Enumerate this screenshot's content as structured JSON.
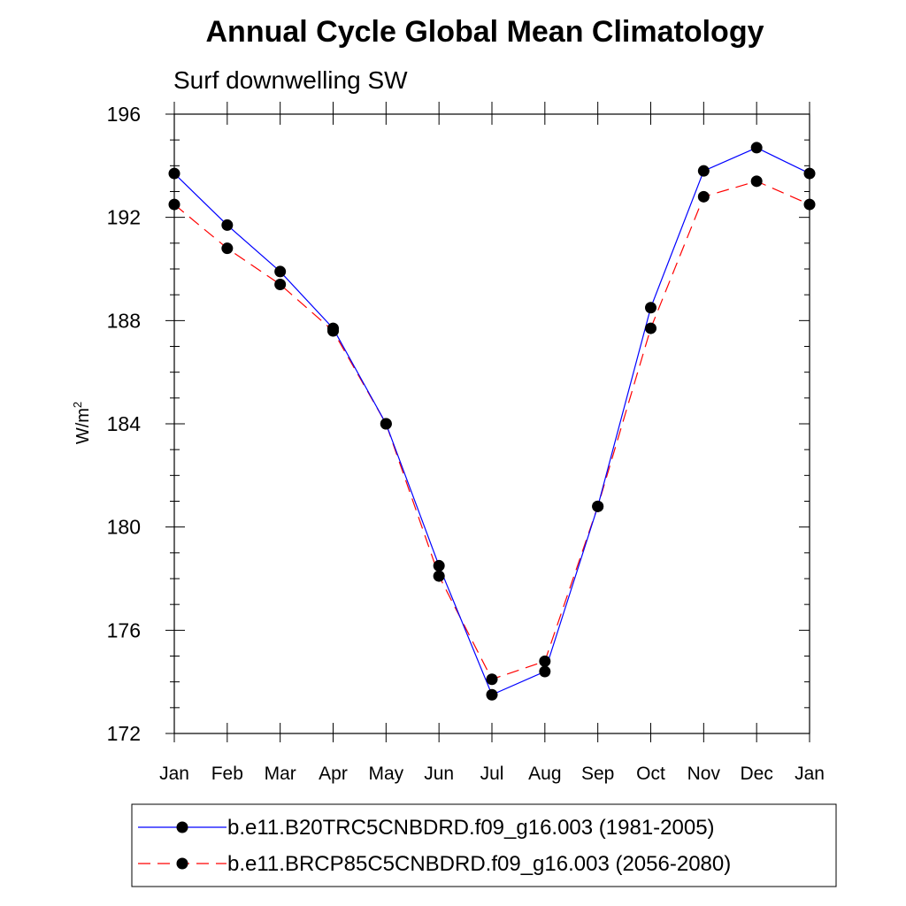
{
  "chart_data": {
    "type": "line",
    "title": "Annual Cycle Global Mean Climatology",
    "subtitle": "Surf downwelling SW",
    "ylabel": "W/m",
    "ylabel_sup": "2",
    "xlabel": "",
    "categories": [
      "Jan",
      "Feb",
      "Mar",
      "Apr",
      "May",
      "Jun",
      "Jul",
      "Aug",
      "Sep",
      "Oct",
      "Nov",
      "Dec",
      "Jan"
    ],
    "ylim": [
      172,
      196
    ],
    "yticks": [
      172,
      176,
      180,
      184,
      188,
      192,
      196
    ],
    "series": [
      {
        "name": "b.e11.B20TRC5CNBDRD.f09_g16.003 (1981-2005)",
        "color": "#0000ff",
        "dash": "solid",
        "values": [
          193.7,
          191.7,
          189.9,
          187.7,
          184.0,
          178.5,
          173.5,
          174.4,
          180.8,
          188.5,
          193.8,
          194.7,
          193.7
        ]
      },
      {
        "name": "b.e11.BRCP85C5CNBDRD.f09_g16.003 (2056-2080)",
        "color": "#ff0000",
        "dash": "dashed",
        "values": [
          192.5,
          190.8,
          189.4,
          187.6,
          184.0,
          178.1,
          174.1,
          174.8,
          180.8,
          187.7,
          192.8,
          193.4,
          192.5
        ]
      }
    ],
    "legend": "bottom"
  }
}
